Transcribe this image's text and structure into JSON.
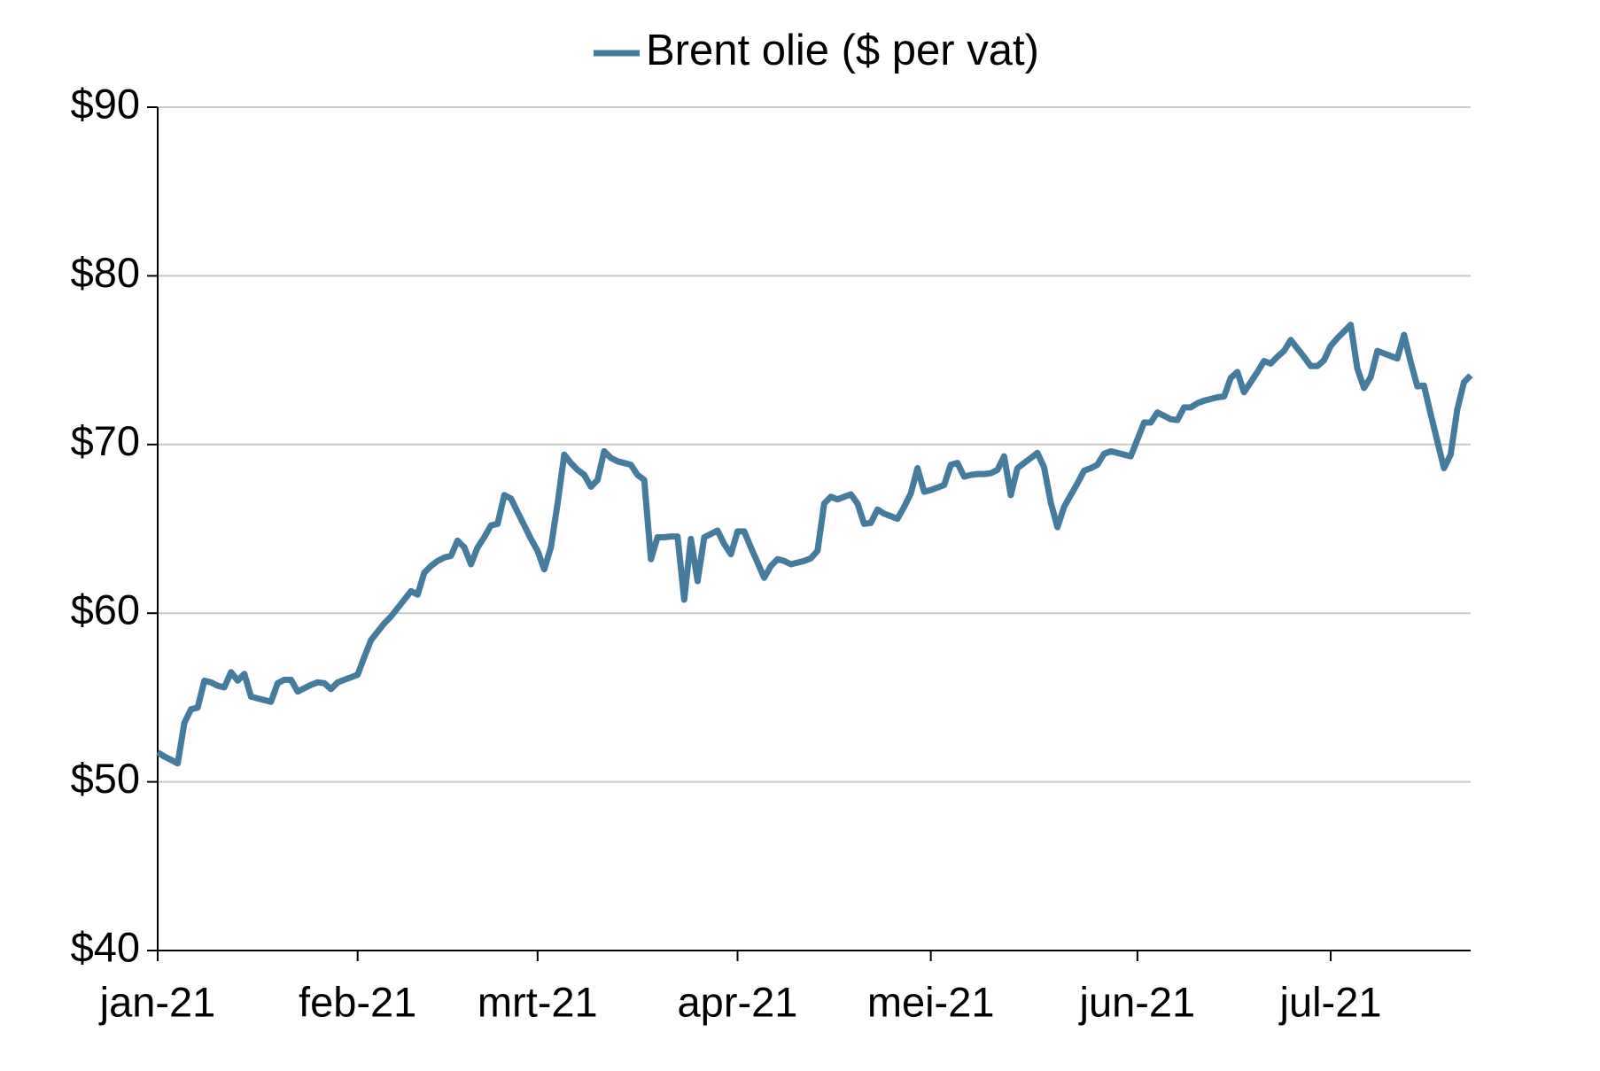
{
  "chart_data": {
    "type": "line",
    "categories": [
      "jan-21",
      null,
      null,
      null,
      null,
      null,
      null,
      null,
      null,
      null,
      null,
      null,
      null,
      null,
      null,
      null,
      null,
      null,
      null,
      null,
      null,
      null,
      null,
      null,
      null,
      null,
      null,
      null,
      null,
      null,
      "feb-21",
      null,
      null,
      null,
      null,
      null,
      null,
      null,
      null,
      null,
      null,
      null,
      null,
      null,
      null,
      null,
      null,
      null,
      null,
      null,
      null,
      null,
      null,
      null,
      null,
      null,
      null,
      "mrt-21",
      null,
      null,
      null,
      null,
      null,
      null,
      null,
      null,
      null,
      null,
      null,
      null,
      null,
      null,
      null,
      null,
      null,
      null,
      null,
      null,
      null,
      null,
      null,
      null,
      null,
      null,
      null,
      null,
      null,
      "apr-21",
      null,
      null,
      null,
      null,
      null,
      null,
      null,
      null,
      null,
      null,
      null,
      null,
      null,
      null,
      null,
      null,
      null,
      null,
      null,
      null,
      null,
      null,
      null,
      null,
      null,
      null,
      null,
      null,
      "mei-21",
      null,
      null,
      null,
      null,
      null,
      null,
      null,
      null,
      null,
      null,
      null,
      null,
      null,
      null,
      null,
      null,
      null,
      null,
      null,
      null,
      null,
      null,
      null,
      null,
      null,
      null,
      null,
      null,
      null,
      null,
      "jun-21",
      null,
      null,
      null,
      null,
      null,
      null,
      null,
      null,
      null,
      null,
      null,
      null,
      null,
      null,
      null,
      null,
      null,
      null,
      null,
      null,
      null,
      null,
      null,
      null,
      null,
      null,
      null,
      null,
      "jul-21",
      null,
      null,
      null,
      null,
      null,
      null,
      null,
      null,
      null,
      null,
      null,
      null,
      null,
      null,
      null,
      null,
      null,
      null,
      null,
      null,
      null
    ],
    "series": [
      {
        "name": "Brent olie ($ per vat)",
        "color": "#457b9d",
        "values": [
          51.75,
          51.5,
          51.3,
          51.1,
          53.5,
          54.3,
          54.4,
          56.0,
          55.9,
          55.7,
          55.6,
          56.5,
          56.0,
          56.4,
          55.05,
          54.95,
          54.85,
          54.75,
          55.85,
          56.05,
          56.05,
          55.35,
          55.55,
          55.75,
          55.9,
          55.85,
          55.5,
          55.9,
          56.05,
          56.2,
          56.35,
          57.4,
          58.4,
          58.9,
          59.4,
          59.8,
          60.3,
          60.8,
          61.3,
          61.1,
          62.4,
          62.8,
          63.1,
          63.3,
          63.4,
          64.3,
          63.9,
          62.9,
          63.9,
          64.5,
          65.2,
          65.3,
          67.0,
          66.8,
          66.0,
          65.2,
          64.4,
          63.7,
          62.6,
          63.9,
          66.5,
          69.4,
          68.9,
          68.5,
          68.2,
          67.5,
          67.9,
          69.6,
          69.2,
          69.0,
          68.9,
          68.8,
          68.2,
          67.9,
          63.2,
          64.5,
          64.5,
          64.55,
          64.55,
          60.8,
          64.4,
          61.9,
          64.5,
          64.7,
          64.9,
          64.1,
          63.5,
          64.85,
          64.85,
          63.9,
          63.0,
          62.1,
          62.8,
          63.2,
          63.1,
          62.9,
          63.0,
          63.1,
          63.25,
          63.7,
          66.5,
          66.9,
          66.75,
          66.9,
          67.05,
          66.5,
          65.3,
          65.35,
          66.15,
          65.9,
          65.75,
          65.6,
          66.3,
          67.1,
          68.6,
          67.2,
          67.3,
          67.45,
          67.6,
          68.8,
          68.9,
          68.1,
          68.2,
          68.25,
          68.25,
          68.3,
          68.5,
          69.3,
          67.0,
          68.6,
          68.9,
          69.2,
          69.5,
          68.65,
          66.55,
          65.1,
          66.3,
          67.0,
          67.7,
          68.45,
          68.6,
          68.8,
          69.45,
          69.6,
          69.5,
          69.4,
          69.3,
          70.3,
          71.3,
          71.3,
          71.9,
          71.7,
          71.5,
          71.45,
          72.2,
          72.2,
          72.45,
          72.6,
          72.7,
          72.8,
          72.85,
          73.95,
          74.3,
          73.1,
          73.7,
          74.3,
          74.95,
          74.8,
          75.2,
          75.55,
          76.2,
          75.7,
          75.2,
          74.65,
          74.65,
          75.0,
          75.85,
          76.3,
          76.7,
          77.1,
          74.5,
          73.35,
          74.0,
          75.55,
          75.4,
          75.25,
          75.1,
          76.5,
          74.9,
          73.45,
          73.5,
          71.8,
          70.2,
          68.6,
          69.4,
          72.1,
          73.7,
          74.1
        ]
      }
    ],
    "ylim": [
      40,
      90
    ],
    "yticks": [
      {
        "value": 40,
        "label": "$40"
      },
      {
        "value": 50,
        "label": "$50"
      },
      {
        "value": 60,
        "label": "$60"
      },
      {
        "value": 70,
        "label": "$70"
      },
      {
        "value": 80,
        "label": "$80"
      },
      {
        "value": 90,
        "label": "$90"
      }
    ],
    "grid": true,
    "legend": "top"
  }
}
